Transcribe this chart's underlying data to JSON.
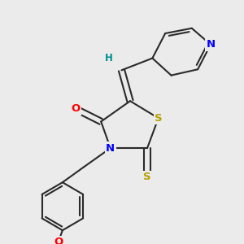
{
  "background_color": "#ebebeb",
  "bond_color": "#2a2a2a",
  "atom_colors": {
    "N": "#0000ff",
    "O": "#ff0000",
    "S": "#b8a000",
    "H": "#009090",
    "C": "#2a2a2a"
  },
  "bond_width": 1.5,
  "font_size": 9.5,
  "figsize": [
    3.0,
    3.0
  ],
  "dpi": 100
}
